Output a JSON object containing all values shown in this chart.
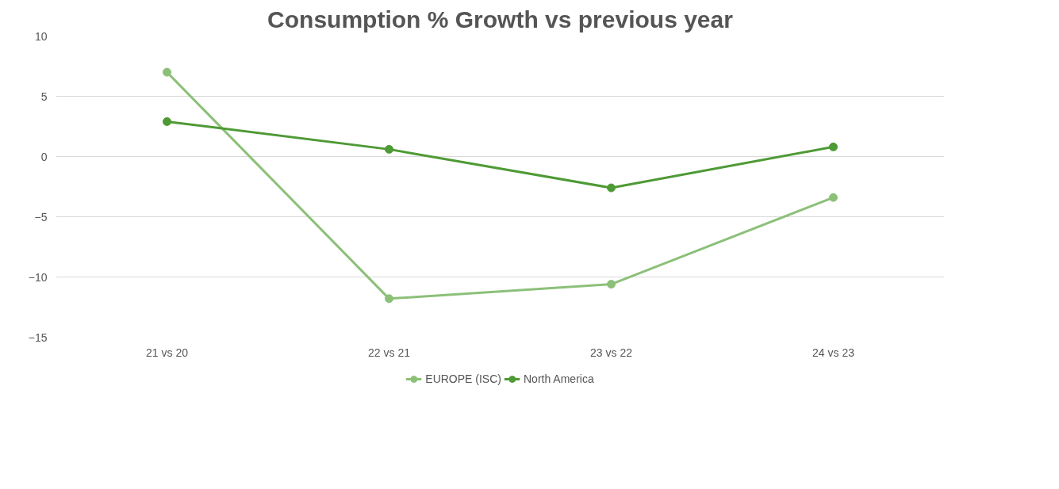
{
  "chart_data": {
    "type": "line",
    "title": "Consumption % Growth vs previous year",
    "categories": [
      "21 vs 20",
      "22 vs 21",
      "23 vs 22",
      "24 vs 23"
    ],
    "series": [
      {
        "name": "EUROPE (ISC)",
        "color": "#8cc079",
        "values": [
          7.0,
          -11.8,
          -10.6,
          -3.4
        ]
      },
      {
        "name": "North America",
        "color": "#4e9a35",
        "values": [
          2.9,
          0.6,
          -2.6,
          0.8
        ]
      }
    ],
    "ylim": [
      -15,
      10
    ],
    "yticks": [
      -15,
      -10,
      -5,
      0,
      5,
      10
    ],
    "grid": "y",
    "legend": "bottom",
    "marker": "circle",
    "line_style": "solid"
  }
}
